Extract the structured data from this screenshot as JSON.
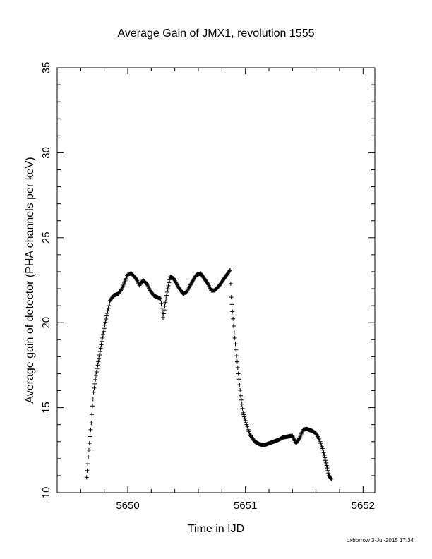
{
  "footer": {
    "text": "oxborrow  3-Jul-2015 17:34"
  },
  "chart_data": {
    "type": "scatter",
    "marker": "+",
    "color": "#000000",
    "title": "Average Gain of JMX1, revolution 1555",
    "xlabel": "Time in IJD",
    "ylabel": "Average gain of detector (PHA channels per keV)",
    "xlim": [
      5649.4,
      5652.1
    ],
    "ylim": [
      10,
      35
    ],
    "xticks": [
      5650,
      5651,
      5652
    ],
    "xtick_labels": [
      "5650",
      "5651",
      "5652"
    ],
    "yticks": [
      10,
      15,
      20,
      25,
      30,
      35
    ],
    "ytick_labels": [
      "10",
      "15",
      "20",
      "25",
      "30",
      "35"
    ],
    "grid": false,
    "series": [
      {
        "name": "",
        "points": [
          [
            5649.65,
            10.9
          ],
          [
            5649.67,
            12.5
          ],
          [
            5649.69,
            14.1
          ],
          [
            5649.7,
            15.1
          ],
          [
            5649.71,
            15.9
          ],
          [
            5649.73,
            16.9
          ],
          [
            5649.76,
            18.1
          ],
          [
            5649.79,
            19.3
          ],
          [
            5649.82,
            20.4
          ],
          [
            5649.85,
            21.3
          ],
          [
            5649.88,
            21.6
          ],
          [
            5649.92,
            21.7
          ],
          [
            5649.95,
            22.0
          ],
          [
            5649.98,
            22.5
          ],
          [
            5650.0,
            22.85
          ],
          [
            5650.03,
            22.9
          ],
          [
            5650.07,
            22.6
          ],
          [
            5650.1,
            22.2
          ],
          [
            5650.13,
            22.5
          ],
          [
            5650.16,
            22.3
          ],
          [
            5650.19,
            21.9
          ],
          [
            5650.22,
            21.6
          ],
          [
            5650.25,
            21.5
          ],
          [
            5650.28,
            21.4
          ],
          [
            5650.3,
            20.3
          ],
          [
            5650.32,
            21.2
          ],
          [
            5650.34,
            22.0
          ],
          [
            5650.36,
            22.7
          ],
          [
            5650.39,
            22.6
          ],
          [
            5650.43,
            22.1
          ],
          [
            5650.47,
            21.7
          ],
          [
            5650.5,
            21.8
          ],
          [
            5650.54,
            22.3
          ],
          [
            5650.58,
            22.8
          ],
          [
            5650.62,
            22.9
          ],
          [
            5650.65,
            22.6
          ],
          [
            5650.68,
            22.3
          ],
          [
            5650.71,
            21.9
          ],
          [
            5650.74,
            21.9
          ],
          [
            5650.78,
            22.2
          ],
          [
            5650.82,
            22.6
          ],
          [
            5650.85,
            22.9
          ],
          [
            5650.87,
            23.1
          ],
          [
            5650.88,
            21.5
          ],
          [
            5650.9,
            19.8
          ],
          [
            5650.92,
            18.4
          ],
          [
            5650.94,
            17.0
          ],
          [
            5650.96,
            15.7
          ],
          [
            5650.98,
            14.7
          ],
          [
            5651.01,
            14.0
          ],
          [
            5651.04,
            13.4
          ],
          [
            5651.08,
            13.0
          ],
          [
            5651.12,
            12.85
          ],
          [
            5651.16,
            12.8
          ],
          [
            5651.2,
            12.9
          ],
          [
            5651.24,
            13.0
          ],
          [
            5651.28,
            13.1
          ],
          [
            5651.32,
            13.25
          ],
          [
            5651.36,
            13.3
          ],
          [
            5651.4,
            13.35
          ],
          [
            5651.43,
            12.9
          ],
          [
            5651.46,
            13.2
          ],
          [
            5651.49,
            13.7
          ],
          [
            5651.52,
            13.75
          ],
          [
            5651.56,
            13.65
          ],
          [
            5651.6,
            13.5
          ],
          [
            5651.63,
            13.1
          ],
          [
            5651.66,
            12.5
          ],
          [
            5651.69,
            11.6
          ],
          [
            5651.71,
            11.0
          ],
          [
            5651.73,
            10.8
          ]
        ]
      }
    ]
  }
}
